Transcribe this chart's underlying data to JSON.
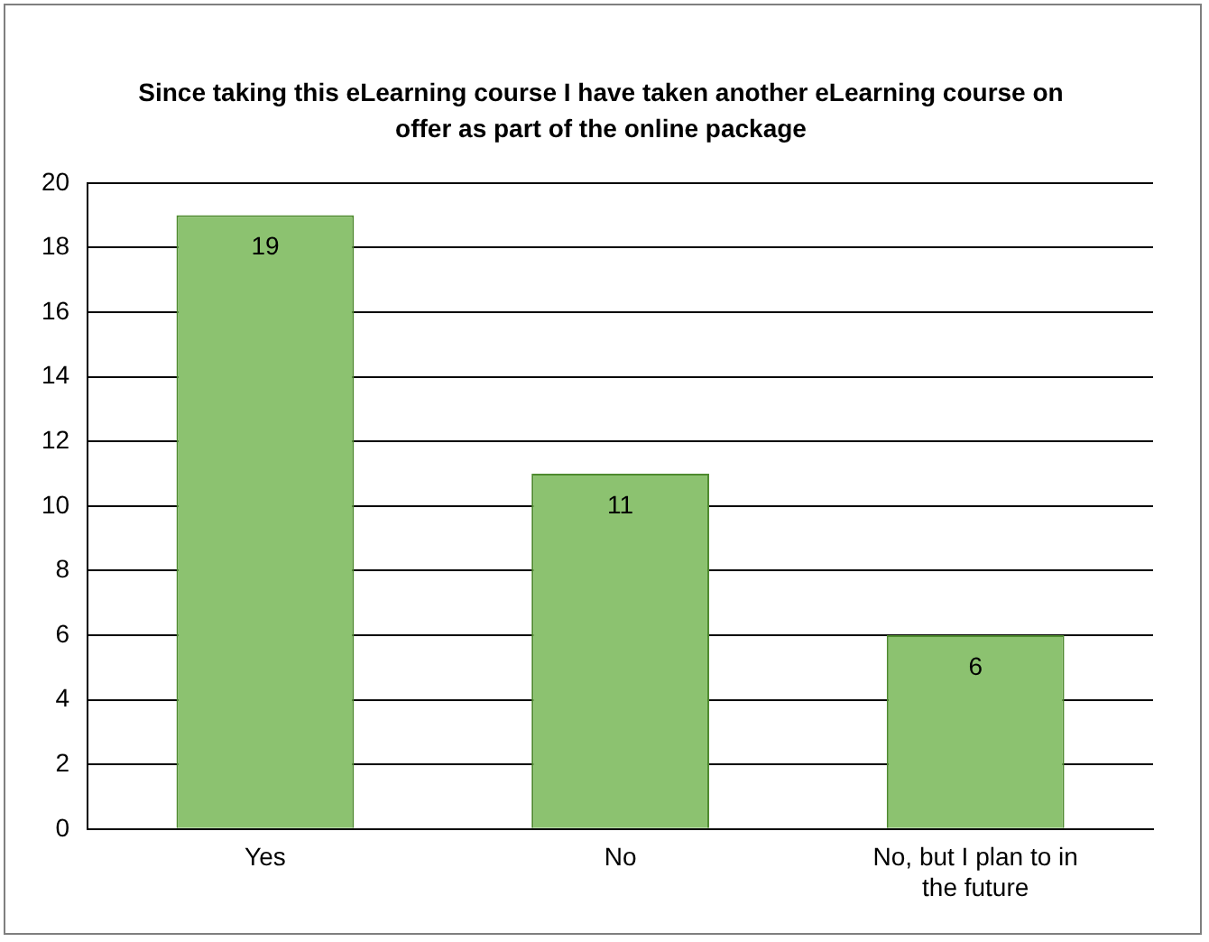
{
  "chart_data": {
    "type": "bar",
    "title": "Since taking this eLearning course I have taken another eLearning course on offer as part of the online package",
    "categories": [
      "Yes",
      "No",
      "No, but I plan to in the future"
    ],
    "values": [
      19,
      11,
      6
    ],
    "color": "#8cc270",
    "ylim": [
      0,
      20
    ],
    "yticks": [
      0,
      2,
      4,
      6,
      8,
      10,
      12,
      14,
      16,
      18,
      20
    ],
    "grid": "y",
    "legend": false,
    "data_labels": true
  }
}
